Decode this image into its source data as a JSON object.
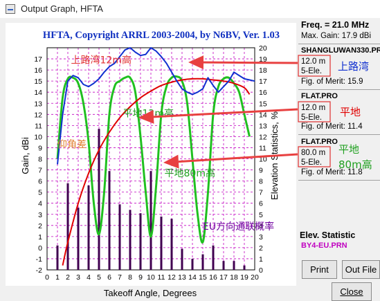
{
  "window": {
    "title": "Output Graph, HFTA"
  },
  "chart_data": {
    "type": "line",
    "title": "HFTA, Copyright ARRL 2003-2004, by N6BV, Ver. 1.03",
    "xlabel": "Takeoff Angle, Degrees",
    "ylabel": "Gain, dBi",
    "y2label": "Elevation Statistics, %",
    "xlim": [
      0,
      20
    ],
    "ylim": [
      -2,
      18
    ],
    "y2lim": [
      0,
      20
    ],
    "x_ticks": [
      "0",
      "1",
      "2",
      "3",
      "4",
      "5",
      "6",
      "7",
      "8",
      "9",
      "10",
      "11",
      "12",
      "13",
      "14",
      "15",
      "16",
      "17",
      "18",
      "19",
      "20"
    ],
    "y_ticks": [
      "-2",
      "-1",
      "0",
      "1",
      "2",
      "3",
      "4",
      "5",
      "6",
      "7",
      "8",
      "9",
      "10",
      "11",
      "12",
      "13",
      "14",
      "15",
      "16",
      "17"
    ],
    "y2_ticks": [
      "0",
      "1",
      "2",
      "3",
      "4",
      "5",
      "6",
      "7",
      "8",
      "9",
      "10",
      "11",
      "12",
      "13",
      "14",
      "15",
      "16",
      "17",
      "18",
      "19",
      "20"
    ],
    "grid": true,
    "series": [
      {
        "name": "SHANGLUWAN330.PRO",
        "color": "#1030d0",
        "x": [
          1.0,
          1.5,
          2.0,
          2.5,
          3.0,
          3.5,
          4.0,
          4.5,
          5.0,
          5.5,
          6.0,
          6.5,
          7.0,
          7.5,
          8.0,
          8.5,
          9.0,
          9.5,
          10.0,
          10.5,
          11.0,
          11.5,
          12.0,
          12.5,
          13.0,
          13.5,
          14.0,
          14.5,
          15.0,
          15.5,
          16.0,
          16.5,
          17.0,
          17.5,
          18.0,
          18.5,
          19.0,
          19.5,
          20.0
        ],
        "y": [
          7.5,
          12.0,
          15.0,
          15.5,
          15.3,
          14.7,
          14.5,
          14.8,
          15.2,
          15.8,
          16.3,
          16.6,
          17.2,
          17.8,
          18.0,
          17.6,
          17.3,
          17.4,
          18.0,
          17.7,
          17.2,
          16.6,
          15.8,
          15.0,
          14.3,
          14.0,
          13.8,
          14.0,
          14.3,
          15.3,
          14.6,
          14.0,
          14.5,
          15.0,
          15.8,
          15.5,
          15.2,
          15.1,
          15.0
        ]
      },
      {
        "name": "FLAT.PRO",
        "color": "#e00000",
        "x": [
          1.5,
          2.0,
          3.0,
          4.0,
          5.0,
          6.0,
          7.0,
          8.0,
          9.0,
          10.0,
          11.0,
          12.0,
          13.0,
          14.0,
          15.0,
          16.0,
          17.0,
          18.0,
          19.0,
          19.5
        ],
        "y": [
          -1.6,
          0.5,
          4.0,
          6.7,
          8.8,
          10.4,
          11.7,
          12.7,
          13.5,
          14.1,
          14.6,
          14.9,
          15.1,
          15.2,
          15.2,
          15.1,
          15.0,
          14.8,
          14.4,
          13.8
        ]
      },
      {
        "name": "FLAT.PRO 80m",
        "color": "#20c020",
        "x": [
          1.0,
          1.5,
          2.0,
          2.5,
          3.0,
          3.5,
          4.0,
          4.5,
          5.0,
          5.5,
          6.0,
          6.5,
          7.0,
          7.5,
          8.0,
          8.5,
          9.0,
          9.5,
          10.0,
          10.5,
          11.0,
          11.5,
          12.0,
          12.5,
          13.0,
          13.5,
          14.0,
          14.5,
          15.0,
          15.5,
          16.0,
          16.5,
          17.0,
          17.5,
          18.0,
          18.5,
          19.0,
          19.5
        ],
        "y": [
          8.0,
          13.5,
          15.2,
          15.3,
          14.8,
          13.0,
          9.5,
          4.0,
          1.2,
          5.0,
          12.0,
          14.5,
          15.0,
          15.3,
          15.3,
          14.0,
          10.0,
          5.0,
          1.0,
          5.5,
          12.0,
          14.5,
          15.3,
          15.4,
          15.0,
          13.0,
          8.0,
          3.0,
          0.5,
          5.0,
          12.0,
          14.5,
          15.2,
          15.3,
          14.8,
          14.0,
          12.0,
          10.0
        ]
      }
    ],
    "bars": {
      "name": "BY4-EU.PRN",
      "axis": "y2",
      "color": "#400050",
      "x": [
        1,
        2,
        3,
        4,
        5,
        6,
        7,
        8,
        9,
        10,
        11,
        12,
        13,
        14,
        15,
        16,
        17,
        18,
        19
      ],
      "values": [
        2.2,
        7.8,
        5.6,
        7.6,
        12.7,
        8.9,
        5.9,
        5.4,
        5.1,
        8.9,
        4.8,
        4.6,
        1.9,
        1.0,
        1.4,
        2.2,
        0.8,
        0.8,
        0.4
      ]
    },
    "annotations": [
      {
        "text": "上路湾12m高",
        "color": "#e03030",
        "x": 2.3,
        "y": 16.6,
        "size": 14
      },
      {
        "text": "平地12m高",
        "color": "#20a020",
        "x": 7.3,
        "y": 11.8,
        "size": 14
      },
      {
        "text": "仰角差",
        "color": "#e08030",
        "x": 1.0,
        "y": 9.0,
        "size": 14
      },
      {
        "text": "平地80m高",
        "color": "#20a020",
        "x": 11.3,
        "y": 6.4,
        "size": 14
      },
      {
        "text": "EU方向通联概率",
        "color": "#7000a0",
        "x": 15.0,
        "y": 1.6,
        "size": 14
      }
    ]
  },
  "panel": {
    "freq": "Freq. = 21.0 MHz",
    "max_gain": "Max. Gain: 17.9 dBi",
    "blocks": [
      {
        "file": "SHANGLUWAN330.PRO",
        "file_color": "#1030d0",
        "height": "12.0 m",
        "ele": "5-Ele.",
        "fom": "Fig. of Merit:  15.9",
        "note": "上路湾",
        "note_color": "#1030d0"
      },
      {
        "file": "FLAT.PRO",
        "file_color": "#e00000",
        "height": "12.0 m",
        "ele": "5-Ele.",
        "fom": "Fig. of Merit:  11.4",
        "note": "平地",
        "note_color": "#e00000"
      },
      {
        "file": "FLAT.PRO",
        "file_color": "#20c020",
        "height": "80.0 m",
        "ele": "5-Ele.",
        "fom": "Fig. of Merit:  11.8",
        "note": "平地\n80m高",
        "note_color": "#20a020"
      }
    ],
    "elev_title": "Elev. Statistic",
    "elev_file": "BY4-EU.PRN"
  },
  "buttons": {
    "print": "Print",
    "outfile": "Out File",
    "close": "Close"
  },
  "colors": {
    "arrow": "#e84040",
    "grid": "#c000c0",
    "axis_text": "#000000"
  }
}
